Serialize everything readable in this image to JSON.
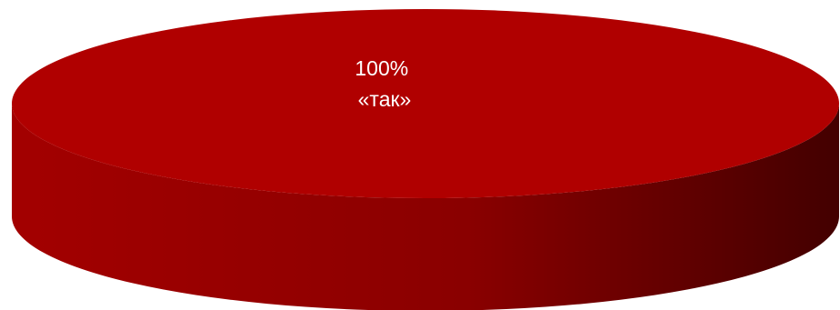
{
  "chart_data": {
    "type": "pie",
    "style": "3d",
    "categories": [
      "«так»"
    ],
    "values": [
      100
    ],
    "labels": [
      {
        "percent": "100%",
        "category": "«так»"
      }
    ],
    "colors": {
      "slice_top": "#b00000",
      "side_light": "#a30000",
      "side_dark": "#430000",
      "label_text": "#ffffff"
    },
    "legend": "none"
  }
}
